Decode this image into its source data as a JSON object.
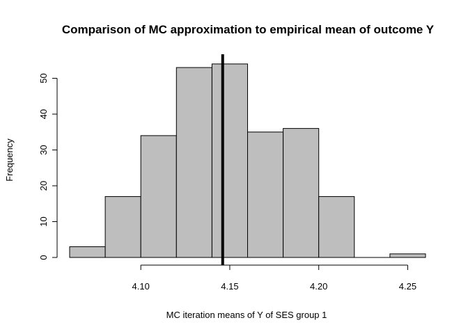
{
  "chart_data": {
    "type": "bar",
    "subtype": "histogram",
    "title": "Comparison of MC approximation to empirical mean of outcome Y",
    "xlabel": "MC iteration means of Y of SES group 1",
    "ylabel": "Frequency",
    "bins": [
      {
        "start": 4.06,
        "end": 4.08,
        "count": 3
      },
      {
        "start": 4.08,
        "end": 4.1,
        "count": 17
      },
      {
        "start": 4.1,
        "end": 4.12,
        "count": 34
      },
      {
        "start": 4.12,
        "end": 4.14,
        "count": 53
      },
      {
        "start": 4.14,
        "end": 4.16,
        "count": 54
      },
      {
        "start": 4.16,
        "end": 4.18,
        "count": 35
      },
      {
        "start": 4.18,
        "end": 4.2,
        "count": 36
      },
      {
        "start": 4.2,
        "end": 4.22,
        "count": 17
      },
      {
        "start": 4.22,
        "end": 4.24,
        "count": 0
      },
      {
        "start": 4.24,
        "end": 4.26,
        "count": 1
      }
    ],
    "xlim": [
      4.06,
      4.26
    ],
    "ylim": [
      0,
      56
    ],
    "x_ticks": [
      "4.10",
      "4.15",
      "4.20",
      "4.25"
    ],
    "x_tick_values": [
      4.1,
      4.15,
      4.2,
      4.25
    ],
    "y_ticks": [
      "0",
      "10",
      "20",
      "30",
      "40",
      "50"
    ],
    "y_tick_values": [
      0,
      10,
      20,
      30,
      40,
      50
    ],
    "vertical_line_x": 4.146,
    "bar_color": "#bebebe",
    "bar_border_color": "#000000",
    "line_color": "#000000",
    "grid": false,
    "legend": "none"
  }
}
